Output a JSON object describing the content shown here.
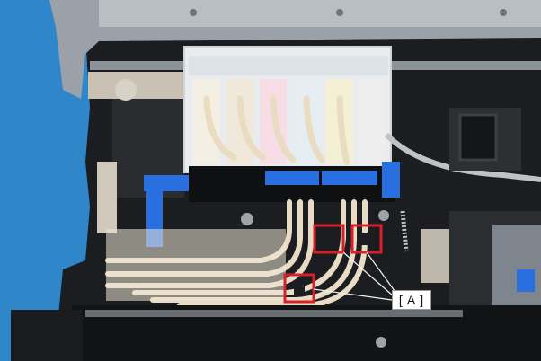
{
  "photo": {
    "subject": "printer-interior-ink-tubes",
    "background_color": "#2f86c8",
    "highlight_color": "#d8202a"
  },
  "callout": {
    "label": "[ A ]"
  },
  "highlights": [
    {
      "id": "hook-1"
    },
    {
      "id": "hook-2"
    },
    {
      "id": "hook-3"
    }
  ]
}
